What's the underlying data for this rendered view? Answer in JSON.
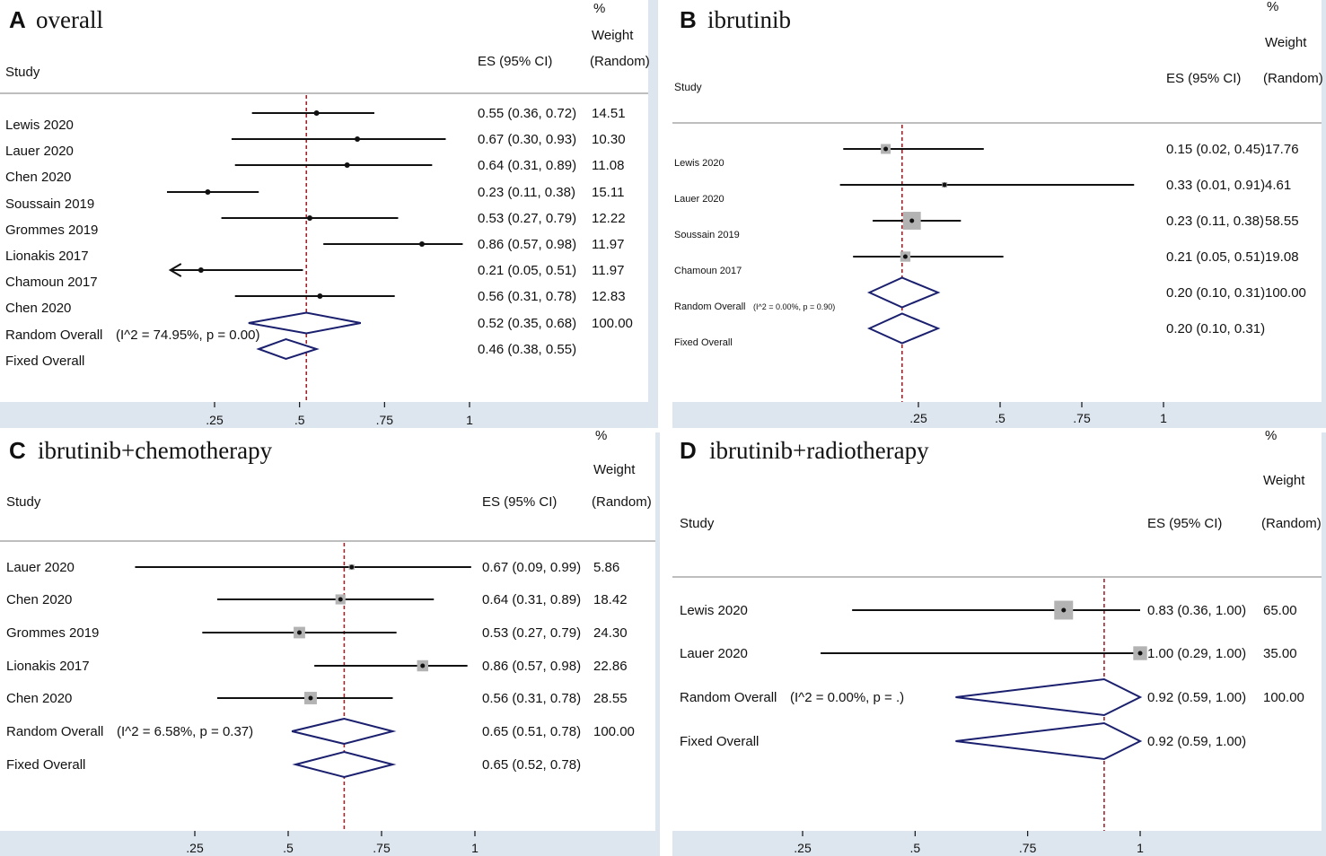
{
  "chart_data": [
    {
      "type": "forest",
      "panel_letter": "A",
      "title": "overall",
      "headers": {
        "study": "Study",
        "es": "ES (95% CI)",
        "pct": "%",
        "weight": "Weight",
        "random": "(Random)"
      },
      "xticks": [
        {
          "value": 0.25,
          "label": ".25"
        },
        {
          "value": 0.5,
          "label": ".5"
        },
        {
          "value": 0.75,
          "label": ".75"
        },
        {
          "value": 1,
          "label": "1"
        }
      ],
      "xlim": [
        0,
        1.05
      ],
      "reference_line": 0.52,
      "studies": [
        {
          "name": "Lewis 2020",
          "es": 0.55,
          "lo": 0.36,
          "hi": 0.72,
          "es_ci": "0.55 (0.36, 0.72)",
          "weight": "14.51"
        },
        {
          "name": "Lauer 2020",
          "es": 0.67,
          "lo": 0.3,
          "hi": 0.93,
          "es_ci": "0.67 (0.30, 0.93)",
          "weight": "10.30"
        },
        {
          "name": "Chen 2020",
          "es": 0.64,
          "lo": 0.31,
          "hi": 0.89,
          "es_ci": "0.64 (0.31, 0.89)",
          "weight": "11.08"
        },
        {
          "name": "Soussain 2019",
          "es": 0.23,
          "lo": 0.11,
          "hi": 0.38,
          "es_ci": "0.23 (0.11, 0.38)",
          "weight": "15.11"
        },
        {
          "name": "Grommes 2019",
          "es": 0.53,
          "lo": 0.27,
          "hi": 0.79,
          "es_ci": "0.53 (0.27, 0.79)",
          "weight": "12.22"
        },
        {
          "name": "Lionakis 2017",
          "es": 0.86,
          "lo": 0.57,
          "hi": 0.98,
          "es_ci": "0.86 (0.57, 0.98)",
          "weight": "11.97"
        },
        {
          "name": "Chamoun 2017",
          "es": 0.21,
          "lo": 0.05,
          "hi": 0.51,
          "es_ci": "0.21 (0.05, 0.51)",
          "weight": "11.97",
          "lo_arrow": true
        },
        {
          "name": "Chen 2020",
          "es": 0.56,
          "lo": 0.31,
          "hi": 0.78,
          "es_ci": "0.56 (0.31, 0.78)",
          "weight": "12.83"
        }
      ],
      "overall": [
        {
          "name": "Random Overall",
          "het": "(I^2 = 74.95%, p = 0.00)",
          "es": 0.52,
          "lo": 0.35,
          "hi": 0.68,
          "es_ci": "0.52 (0.35, 0.68)",
          "weight": "100.00"
        },
        {
          "name": "Fixed Overall",
          "het": "",
          "es": 0.46,
          "lo": 0.38,
          "hi": 0.55,
          "es_ci": "0.46 (0.38, 0.55)",
          "weight": ""
        }
      ]
    },
    {
      "type": "forest",
      "panel_letter": "B",
      "title": "ibrutinib",
      "headers": {
        "study": "Study",
        "es": "ES (95% CI)",
        "pct": "%",
        "weight": "Weight",
        "random": "(Random)"
      },
      "xticks": [
        {
          "value": 0.25,
          "label": ".25"
        },
        {
          "value": 0.5,
          "label": ".5"
        },
        {
          "value": 0.75,
          "label": ".75"
        },
        {
          "value": 1,
          "label": "1"
        }
      ],
      "xlim": [
        0,
        1
      ],
      "reference_line": 0.2,
      "studies": [
        {
          "name": "Lewis 2020",
          "es": 0.15,
          "lo": 0.02,
          "hi": 0.45,
          "es_ci": "0.15 (0.02, 0.45)",
          "weight": "17.76"
        },
        {
          "name": "Lauer 2020",
          "es": 0.33,
          "lo": 0.01,
          "hi": 0.91,
          "es_ci": "0.33 (0.01, 0.91)",
          "weight": "4.61"
        },
        {
          "name": "Soussain 2019",
          "es": 0.23,
          "lo": 0.11,
          "hi": 0.38,
          "es_ci": "0.23 (0.11, 0.38)",
          "weight": "58.55"
        },
        {
          "name": "Chamoun 2017",
          "es": 0.21,
          "lo": 0.05,
          "hi": 0.51,
          "es_ci": "0.21 (0.05, 0.51)",
          "weight": "19.08"
        }
      ],
      "overall": [
        {
          "name": "Random Overall",
          "het": "(I^2 = 0.00%, p = 0.90)",
          "es": 0.2,
          "lo": 0.1,
          "hi": 0.31,
          "es_ci": "0.20 (0.10, 0.31)",
          "weight": "100.00"
        },
        {
          "name": "Fixed Overall",
          "het": "",
          "es": 0.2,
          "lo": 0.1,
          "hi": 0.31,
          "es_ci": "0.20 (0.10, 0.31)",
          "weight": ""
        }
      ]
    },
    {
      "type": "forest",
      "panel_letter": "C",
      "title": "ibrutinib+chemotherapy",
      "headers": {
        "study": "Study",
        "es": "ES (95% CI)",
        "pct": "%",
        "weight": "Weight",
        "random": "(Random)"
      },
      "xticks": [
        {
          "value": 0.25,
          "label": ".25"
        },
        {
          "value": 0.5,
          "label": ".5"
        },
        {
          "value": 0.75,
          "label": ".75"
        },
        {
          "value": 1,
          "label": "1"
        }
      ],
      "xlim": [
        0,
        1
      ],
      "reference_line": 0.65,
      "studies": [
        {
          "name": "Lauer 2020",
          "es": 0.67,
          "lo": 0.09,
          "hi": 0.99,
          "es_ci": "0.67 (0.09, 0.99)",
          "weight": "5.86"
        },
        {
          "name": "Chen 2020",
          "es": 0.64,
          "lo": 0.31,
          "hi": 0.89,
          "es_ci": "0.64 (0.31, 0.89)",
          "weight": "18.42"
        },
        {
          "name": "Grommes 2019",
          "es": 0.53,
          "lo": 0.27,
          "hi": 0.79,
          "es_ci": "0.53 (0.27, 0.79)",
          "weight": "24.30"
        },
        {
          "name": "Lionakis 2017",
          "es": 0.86,
          "lo": 0.57,
          "hi": 0.98,
          "es_ci": "0.86 (0.57, 0.98)",
          "weight": "22.86"
        },
        {
          "name": "Chen 2020",
          "es": 0.56,
          "lo": 0.31,
          "hi": 0.78,
          "es_ci": "0.56 (0.31, 0.78)",
          "weight": "28.55"
        }
      ],
      "overall": [
        {
          "name": "Random Overall",
          "het": "(I^2 = 6.58%, p = 0.37)",
          "es": 0.65,
          "lo": 0.51,
          "hi": 0.78,
          "es_ci": "0.65 (0.51, 0.78)",
          "weight": "100.00"
        },
        {
          "name": "Fixed Overall",
          "het": "",
          "es": 0.65,
          "lo": 0.52,
          "hi": 0.78,
          "es_ci": "0.65 (0.52, 0.78)",
          "weight": ""
        }
      ]
    },
    {
      "type": "forest",
      "panel_letter": "D",
      "title": "ibrutinib+radiotherapy",
      "headers": {
        "study": "Study",
        "es": "ES (95% CI)",
        "pct": "%",
        "weight": "Weight",
        "random": "(Random)"
      },
      "xticks": [
        {
          "value": 0.25,
          "label": ".25"
        },
        {
          "value": 0.5,
          "label": ".5"
        },
        {
          "value": 0.75,
          "label": ".75"
        },
        {
          "value": 1,
          "label": "1"
        }
      ],
      "xlim": [
        0,
        1
      ],
      "reference_line": 0.92,
      "studies": [
        {
          "name": "Lewis 2020",
          "es": 0.83,
          "lo": 0.36,
          "hi": 1.0,
          "es_ci": "0.83 (0.36, 1.00)",
          "weight": "65.00"
        },
        {
          "name": "Lauer 2020",
          "es": 1.0,
          "lo": 0.29,
          "hi": 1.0,
          "es_ci": "1.00 (0.29, 1.00)",
          "weight": "35.00"
        }
      ],
      "overall": [
        {
          "name": "Random Overall",
          "het": "(I^2 = 0.00%, p = .)",
          "es": 0.92,
          "lo": 0.59,
          "hi": 1.0,
          "es_ci": "0.92 (0.59, 1.00)",
          "weight": "100.00"
        },
        {
          "name": "Fixed Overall",
          "het": "",
          "es": 0.92,
          "lo": 0.59,
          "hi": 1.0,
          "es_ci": "0.92 (0.59, 1.00)",
          "weight": ""
        }
      ]
    }
  ],
  "colors": {
    "reference_line": "#a0262e",
    "diamond": "#1a1f6e",
    "axis_band": "#dde5ee",
    "weight_box": "#b3b3b3",
    "ink": "#111111",
    "rule": "#a9a9a9"
  }
}
